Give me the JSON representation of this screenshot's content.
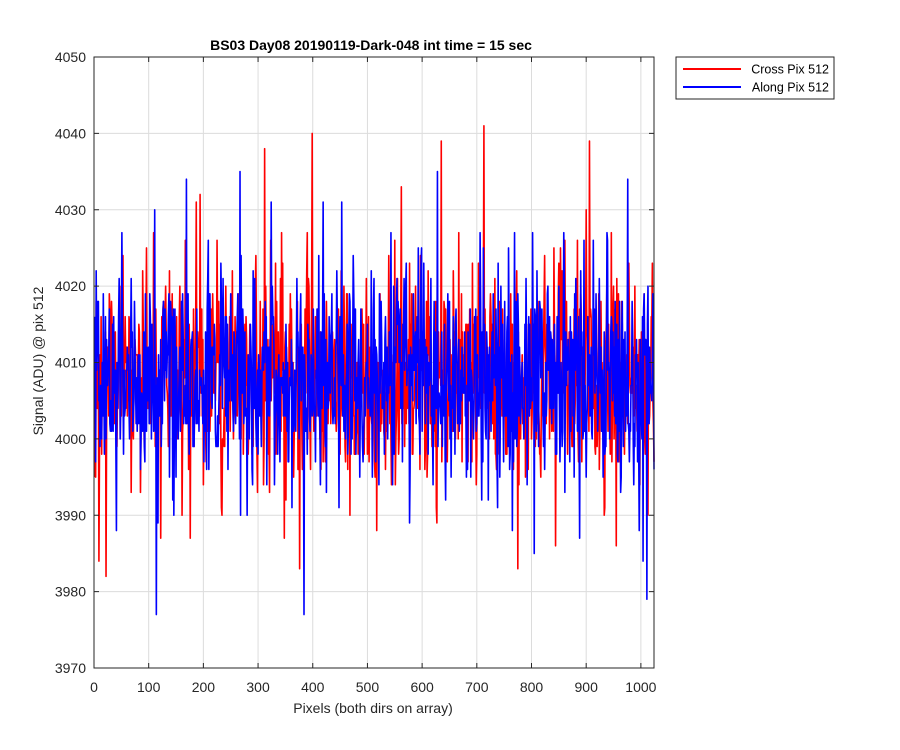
{
  "chart_data": {
    "type": "line",
    "title": "BS03 Day08 20190119-Dark-048 int time = 15 sec",
    "xlabel": "Pixels (both dirs on array)",
    "ylabel": "Signal (ADU) @ pix 512",
    "xlim": [
      0,
      1024
    ],
    "ylim": [
      3970,
      4050
    ],
    "xticks": [
      "0",
      "100",
      "200",
      "300",
      "400",
      "500",
      "600",
      "700",
      "800",
      "900",
      "1000"
    ],
    "yticks": [
      "3970",
      "3980",
      "3990",
      "4000",
      "4010",
      "4020",
      "4030",
      "4040",
      "4050"
    ],
    "grid": true,
    "legend_position": "outside top-right",
    "noise": {
      "mean": 4008,
      "std": 7,
      "n_points": 1024
    },
    "series": [
      {
        "name": "Cross Pix 512",
        "color": "#ff0000",
        "spikes": [
          [
            8,
            3984
          ],
          [
            21,
            3982
          ],
          [
            52,
            4024
          ],
          [
            121,
            3987
          ],
          [
            160,
            3990
          ],
          [
            175,
            3987
          ],
          [
            186,
            4031
          ],
          [
            193,
            4032
          ],
          [
            311,
            4038
          ],
          [
            322,
            4026
          ],
          [
            347,
            3987
          ],
          [
            375,
            3983
          ],
          [
            398,
            4040
          ],
          [
            561,
            4033
          ],
          [
            634,
            4039
          ],
          [
            712,
            4041
          ],
          [
            774,
            3983
          ],
          [
            860,
            4026
          ],
          [
            899,
            4030
          ],
          [
            905,
            4039
          ],
          [
            932,
            3990
          ],
          [
            954,
            3986
          ],
          [
            1020,
            4023
          ]
        ]
      },
      {
        "name": "Along Pix 512",
        "color": "#0000ff",
        "spikes": [
          [
            3,
            4022
          ],
          [
            40,
            3988
          ],
          [
            110,
            4030
          ],
          [
            113,
            3977
          ],
          [
            168,
            4034
          ],
          [
            208,
            4026
          ],
          [
            266,
            4035
          ],
          [
            323,
            4031
          ],
          [
            361,
            3991
          ],
          [
            383,
            3977
          ],
          [
            418,
            4031
          ],
          [
            452,
            4031
          ],
          [
            576,
            3989
          ],
          [
            592,
            4025
          ],
          [
            627,
            4035
          ],
          [
            711,
            4025
          ],
          [
            804,
            3985
          ],
          [
            887,
            3987
          ],
          [
            912,
            4026
          ],
          [
            975,
            4034
          ],
          [
            1003,
            3984
          ],
          [
            1010,
            3979
          ],
          [
            1012,
            4020
          ]
        ]
      }
    ]
  }
}
